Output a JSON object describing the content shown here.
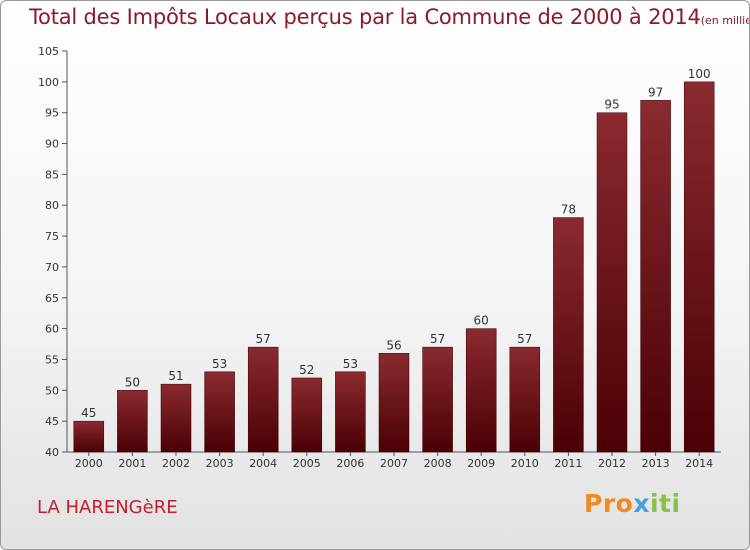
{
  "header": {
    "title": "Total des Impôts Locaux perçus par la Commune de 2000 à 2014",
    "unit": "(en milliers d'€)"
  },
  "footer": {
    "commune": "LA HARENGèRE",
    "logo": {
      "part1": "Pro",
      "part2": "x",
      "part3": "iti"
    }
  },
  "colors": {
    "bar_top": "#8a2a30",
    "bar_bottom": "#4a0005",
    "title": "#8b1a2b",
    "commune": "#c0202e"
  },
  "chart_data": {
    "type": "bar",
    "title": "Total des Impôts Locaux perçus par la Commune de 2000 à 2014",
    "categories": [
      "2000",
      "2001",
      "2002",
      "2003",
      "2004",
      "2005",
      "2006",
      "2007",
      "2008",
      "2009",
      "2010",
      "2011",
      "2012",
      "2013",
      "2014"
    ],
    "values": [
      45,
      50,
      51,
      53,
      57,
      52,
      53,
      56,
      57,
      60,
      57,
      78,
      95,
      97,
      100
    ],
    "ylim": [
      40,
      105
    ],
    "yticks": [
      40,
      45,
      50,
      55,
      60,
      65,
      70,
      75,
      80,
      85,
      90,
      95,
      100,
      105
    ],
    "grid": false,
    "data_labels": true
  }
}
